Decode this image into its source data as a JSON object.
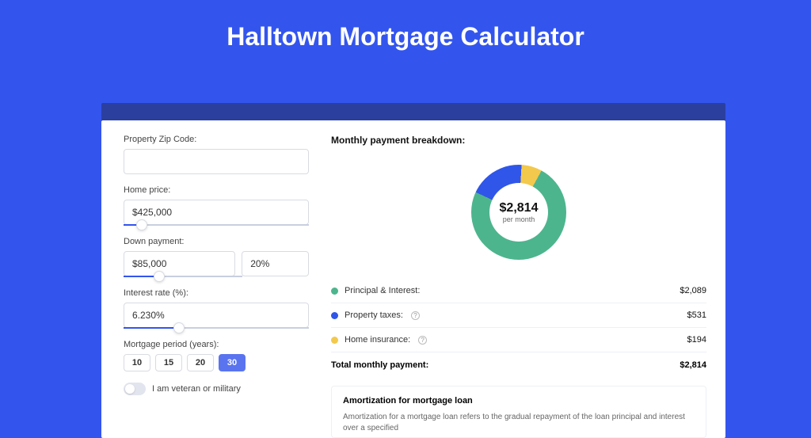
{
  "page": {
    "title": "Halltown Mortgage Calculator",
    "background_color": "#3355ee",
    "banner_color": "#2b3f9f",
    "panel_color": "#ffffff"
  },
  "form": {
    "zip": {
      "label": "Property Zip Code:",
      "value": ""
    },
    "home_price": {
      "label": "Home price:",
      "value": "$425,000",
      "slider_pct": 10
    },
    "down_payment": {
      "label": "Down payment:",
      "amount": "$85,000",
      "percent": "20%",
      "slider_pct": 20
    },
    "interest": {
      "label": "Interest rate (%):",
      "value": "6.230%",
      "slider_pct": 30
    },
    "period": {
      "label": "Mortgage period (years):",
      "options": [
        "10",
        "15",
        "20",
        "30"
      ],
      "selected": "30"
    },
    "veteran": {
      "label": "I am veteran or military",
      "value": false
    }
  },
  "breakdown": {
    "title": "Monthly payment breakdown:",
    "donut": {
      "center_value": "$2,814",
      "center_sub": "per month",
      "slices": [
        {
          "label": "Principal & Interest:",
          "value": "$2,089",
          "color": "#4db58e",
          "pct": 74,
          "has_help": false
        },
        {
          "label": "Property taxes:",
          "value": "$531",
          "color": "#2f56e8",
          "pct": 19,
          "has_help": true
        },
        {
          "label": "Home insurance:",
          "value": "$194",
          "color": "#f2c94c",
          "pct": 7,
          "has_help": true
        }
      ]
    },
    "total": {
      "label": "Total monthly payment:",
      "value": "$2,814"
    }
  },
  "amortization": {
    "title": "Amortization for mortgage loan",
    "text": "Amortization for a mortgage loan refers to the gradual repayment of the loan principal and interest over a specified"
  }
}
